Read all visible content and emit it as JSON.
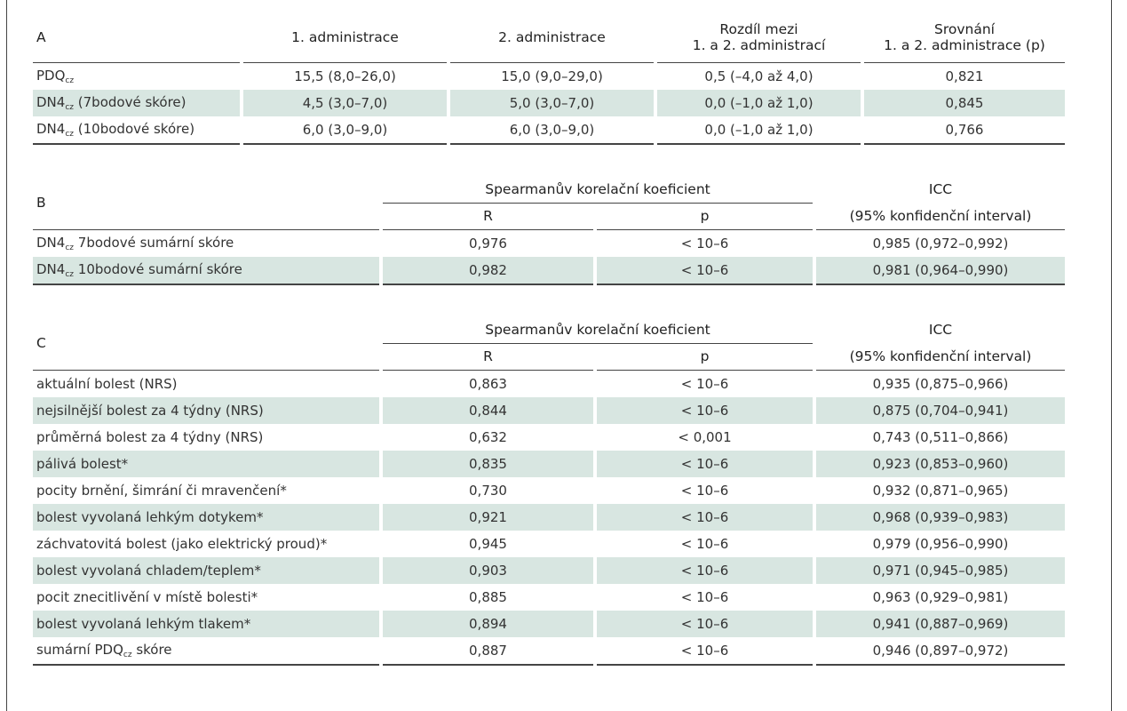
{
  "section_a": {
    "letter": "A",
    "columns": [
      "1. administrace",
      "2. administrace",
      "Rozdíl mezi",
      "1. a 2. administrací",
      "Srovnání",
      "1. a 2. administrace (p)"
    ],
    "rows": [
      {
        "label": "PDQ",
        "sub": "cz",
        "suffix": "",
        "v1": "15,5 (8,0–26,0)",
        "v2": "15,0 (9,0–29,0)",
        "v3": "0,5 (–4,0 až 4,0)",
        "v4": "0,821"
      },
      {
        "label": "DN4",
        "sub": "cz",
        "suffix": " (7bodové skóre)",
        "v1": "4,5 (3,0–7,0)",
        "v2": "5,0 (3,0–7,0)",
        "v3": "0,0 (–1,0 až 1,0)",
        "v4": "0,845"
      },
      {
        "label": "DN4",
        "sub": "cz",
        "suffix": " (10bodové skóre)",
        "v1": "6,0 (3,0–9,0)",
        "v2": "6,0 (3,0–9,0)",
        "v3": "0,0 (–1,0 až 1,0)",
        "v4": "0,766"
      }
    ]
  },
  "section_b": {
    "letter": "B",
    "spearman": "Spearmanův korelační koeficient",
    "r": "R",
    "p": "p",
    "icc": "ICC",
    "icc_sub": "(95% konfidenční interval)",
    "rows": [
      {
        "label": "DN4",
        "sub": "cz",
        "suffix": " 7bodové sumární skóre",
        "r": "0,976",
        "p": "< 10–6",
        "icc": "0,985 (0,972–0,992)"
      },
      {
        "label": "DN4",
        "sub": "cz",
        "suffix": " 10bodové sumární skóre",
        "r": "0,982",
        "p": "< 10–6",
        "icc": "0,981 (0,964–0,990)"
      }
    ]
  },
  "section_c": {
    "letter": "C",
    "spearman": "Spearmanův korelační koeficient",
    "r": "R",
    "p": "p",
    "icc": "ICC",
    "icc_sub": "(95% konfidenční interval)",
    "rows": [
      {
        "label": "aktuální bolest (NRS)",
        "r": "0,863",
        "p": "< 10–6",
        "icc": "0,935 (0,875–0,966)"
      },
      {
        "label": "nejsilnější bolest za 4 týdny (NRS)",
        "r": "0,844",
        "p": "< 10–6",
        "icc": "0,875 (0,704–0,941)"
      },
      {
        "label": "průměrná bolest za 4 týdny (NRS)",
        "r": "0,632",
        "p": "< 0,001",
        "icc": "0,743 (0,511–0,866)"
      },
      {
        "label": "pálivá bolest*",
        "r": "0,835",
        "p": "< 10–6",
        "icc": "0,923 (0,853–0,960)"
      },
      {
        "label": "pocity brnění, šimrání či mravenčení*",
        "r": "0,730",
        "p": "< 10–6",
        "icc": "0,932 (0,871–0,965)"
      },
      {
        "label": "bolest vyvolaná lehkým dotykem*",
        "r": "0,921",
        "p": "< 10–6",
        "icc": "0,968 (0,939–0,983)"
      },
      {
        "label": "záchvatovitá bolest (jako elektrický proud)*",
        "r": "0,945",
        "p": "< 10–6",
        "icc": "0,979 (0,956–0,990)"
      },
      {
        "label": "bolest vyvolaná chladem/teplem*",
        "r": "0,903",
        "p": "< 10–6",
        "icc": "0,971 (0,945–0,985)"
      },
      {
        "label": "pocit znecitlivění v místě bolesti*",
        "r": "0,885",
        "p": "< 10–6",
        "icc": "0,963 (0,929–0,981)"
      },
      {
        "label": "bolest vyvolaná lehkým tlakem*",
        "r": "0,894",
        "p": "< 10–6",
        "icc": "0,941 (0,887–0,969)"
      }
    ],
    "total": {
      "label": "sumární PDQ",
      "sub": "cz",
      "suffix": " skóre",
      "r": "0,887",
      "p": "< 10–6",
      "icc": "0,946 (0,897–0,972)"
    }
  }
}
